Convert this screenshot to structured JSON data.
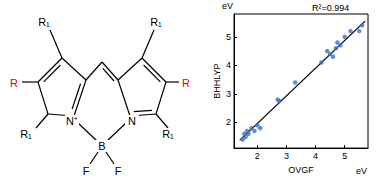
{
  "chart_data": {
    "type": "scatter",
    "xlabel": "OVGF",
    "ylabel": "BHHLYP",
    "xunit": "eV",
    "yunit": "eV",
    "annotation": "R²=0.994",
    "xlim": [
      1.2,
      5.8
    ],
    "xticks": [
      2,
      3,
      4,
      5
    ],
    "ylim": [
      1.1,
      5.8
    ],
    "yticks": [
      2,
      3,
      4,
      5
    ],
    "grid": false,
    "series": [
      {
        "type": "scatter",
        "color": "#3a6fc8",
        "marker": "circle",
        "x": [
          1.5,
          1.55,
          1.6,
          1.65,
          1.7,
          1.8,
          1.9,
          2.0,
          2.1,
          2.7,
          2.75,
          3.3,
          4.2,
          4.4,
          4.5,
          4.6,
          4.7,
          4.75,
          4.85,
          5.0,
          5.2,
          5.5,
          5.6
        ],
        "values": [
          1.4,
          1.6,
          1.5,
          1.7,
          1.6,
          1.8,
          1.7,
          1.9,
          1.8,
          2.8,
          2.75,
          3.4,
          4.1,
          4.5,
          4.4,
          4.3,
          4.6,
          4.8,
          4.7,
          5.0,
          5.2,
          5.2,
          5.4
        ]
      },
      {
        "type": "line",
        "color": "#000000",
        "line_style": "solid",
        "x": [
          1.4,
          5.7
        ],
        "values": [
          1.38,
          5.55
        ]
      }
    ]
  },
  "structure": {
    "labels": [
      {
        "text": "R₁",
        "color": "#000000"
      },
      {
        "text": "R",
        "color": "#e00000"
      },
      {
        "text": "R₁",
        "color": "#000000"
      },
      {
        "text": "R₁",
        "color": "#000000"
      },
      {
        "text": "R",
        "color": "#e00000"
      },
      {
        "text": "R₁",
        "color": "#000000"
      },
      {
        "text": "N⁺",
        "color": "#000000"
      },
      {
        "text": "N",
        "color": "#000000"
      },
      {
        "text": "B",
        "color": "#000000"
      },
      {
        "text": "F",
        "color": "#000000"
      },
      {
        "text": "F",
        "color": "#000000"
      }
    ]
  }
}
